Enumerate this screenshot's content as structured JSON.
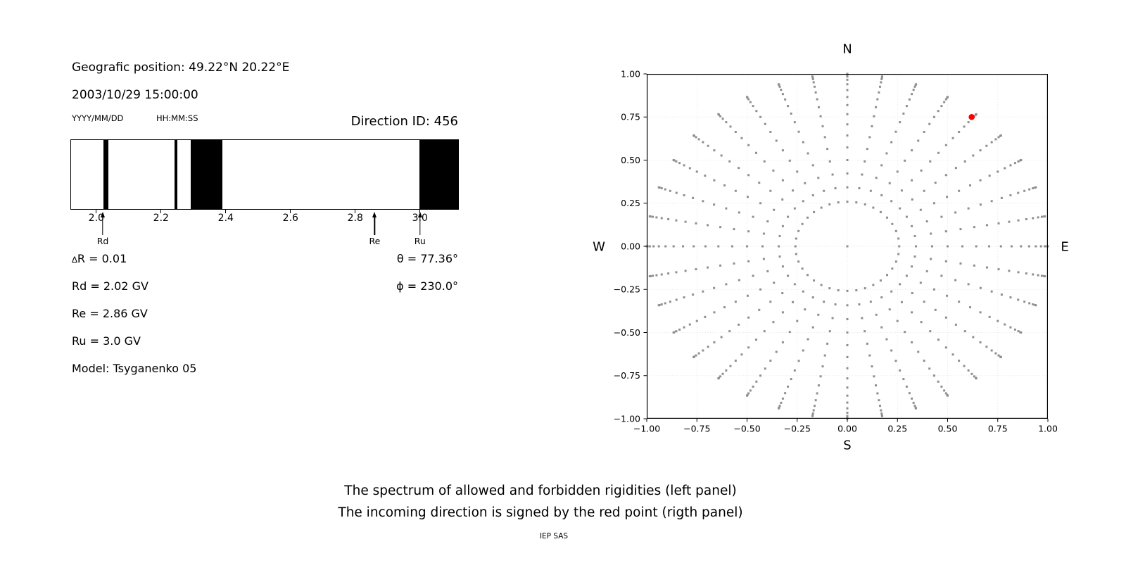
{
  "left_panel": {
    "geo_position": "Geografic position: 49.22°N 20.22°E",
    "datetime": "2003/10/29 15:00:00",
    "date_format_label": "YYYY/MM/DD",
    "time_format_label": "HH:MM:SS",
    "direction_id": "Direction ID: 456",
    "delta_symbol": "∆",
    "delta_rest": "R = 0.01",
    "rd_line": "Rd = 2.02 GV",
    "re_line": "Re = 2.86 GV",
    "ru_line": "Ru = 3.0 GV",
    "model_line": "Model: Tsyganenko 05",
    "theta_line": "θ = 77.36°",
    "phi_line": "ϕ = 230.0°"
  },
  "captions": {
    "line1": "The spectrum of allowed and forbidden rigidities (left panel)",
    "line2": "The incoming direction is signed by the red point (rigth panel)",
    "credit": "IEP SAS"
  },
  "chart_data": [
    {
      "type": "bar",
      "panel": "left",
      "title": "Spectrum of allowed (white) and forbidden (black) rigidities",
      "x_unit": "GV",
      "xlim": [
        1.92,
        3.12
      ],
      "x_ticks": [
        2.0,
        2.2,
        2.4,
        2.6,
        2.8,
        3.0
      ],
      "x_tick_labels": [
        "2.0",
        "2.2",
        "2.4",
        "2.6",
        "2.8",
        "3.0"
      ],
      "forbidden_bands_gv": [
        [
          2.02,
          2.035
        ],
        [
          2.24,
          2.25
        ],
        [
          2.29,
          2.39
        ],
        [
          3.0,
          3.12
        ]
      ],
      "markers": [
        {
          "label": "Rd",
          "value_gv": 2.02
        },
        {
          "label": "Re",
          "value_gv": 2.86
        },
        {
          "label": "Ru",
          "value_gv": 3.0
        }
      ],
      "delta_r_gv": 0.01,
      "band_color": "#000000",
      "background_color": "#ffffff"
    },
    {
      "type": "scatter",
      "panel": "right",
      "title": "Incoming direction map (N/E/S/W)",
      "xlim": [
        -1,
        1
      ],
      "ylim": [
        -1,
        1
      ],
      "ticks": [
        -1,
        -0.75,
        -0.5,
        -0.25,
        0,
        0.25,
        0.5,
        0.75,
        1
      ],
      "tick_labels": [
        "−1.00",
        "−0.75",
        "−0.50",
        "−0.25",
        "0.00",
        "0.25",
        "0.50",
        "0.75",
        "1.00"
      ],
      "compass": {
        "top": "N",
        "bottom": "S",
        "left": "W",
        "right": "E"
      },
      "gray_spokes": {
        "azimuth_start_deg": 0,
        "azimuth_step_deg": 10,
        "azimuth_count": 36,
        "zenith_start_deg": 15,
        "zenith_end_deg": 90,
        "zenith_step_deg": 5,
        "radius_rule": "sin(zenith)",
        "includes_center_point": true
      },
      "red_point": {
        "x": 0.62,
        "y": 0.75,
        "color": "#ff0000"
      },
      "dot_color": "#8f8f8f",
      "grid": {
        "visible": true,
        "color": "#e4e4e4",
        "style": "dotted"
      },
      "legend": "red point = incoming direction"
    }
  ]
}
